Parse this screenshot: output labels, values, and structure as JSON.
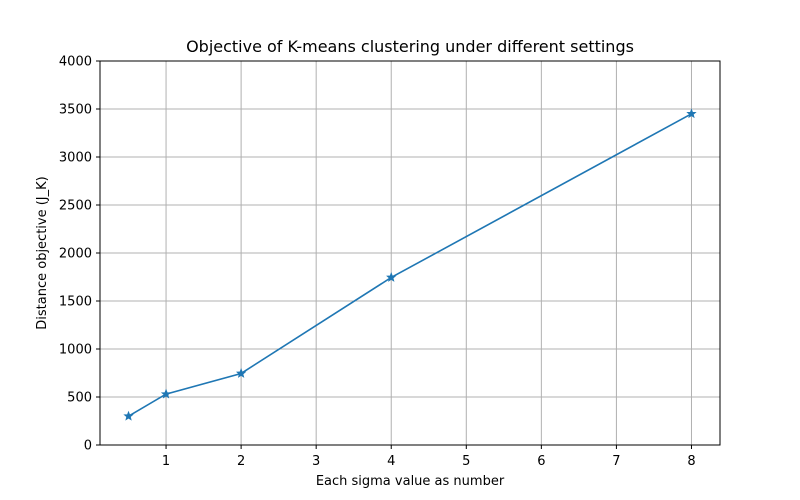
{
  "chart_data": {
    "type": "line",
    "title": "Objective of K-means clustering under different settings",
    "xlabel": "Each sigma value as number",
    "ylabel": "Distance objective (J_K)",
    "xlim": [
      0.12,
      8.38
    ],
    "ylim": [
      0,
      4000
    ],
    "xticks": [
      1,
      2,
      3,
      4,
      5,
      6,
      7,
      8
    ],
    "yticks": [
      0,
      500,
      1000,
      1500,
      2000,
      2500,
      3000,
      3500,
      4000
    ],
    "grid": true,
    "series": [
      {
        "color": "#1f77b4",
        "marker": "star",
        "x": [
          0.5,
          1,
          2,
          4,
          8
        ],
        "y": [
          300,
          530,
          745,
          1745,
          3450
        ]
      }
    ]
  }
}
